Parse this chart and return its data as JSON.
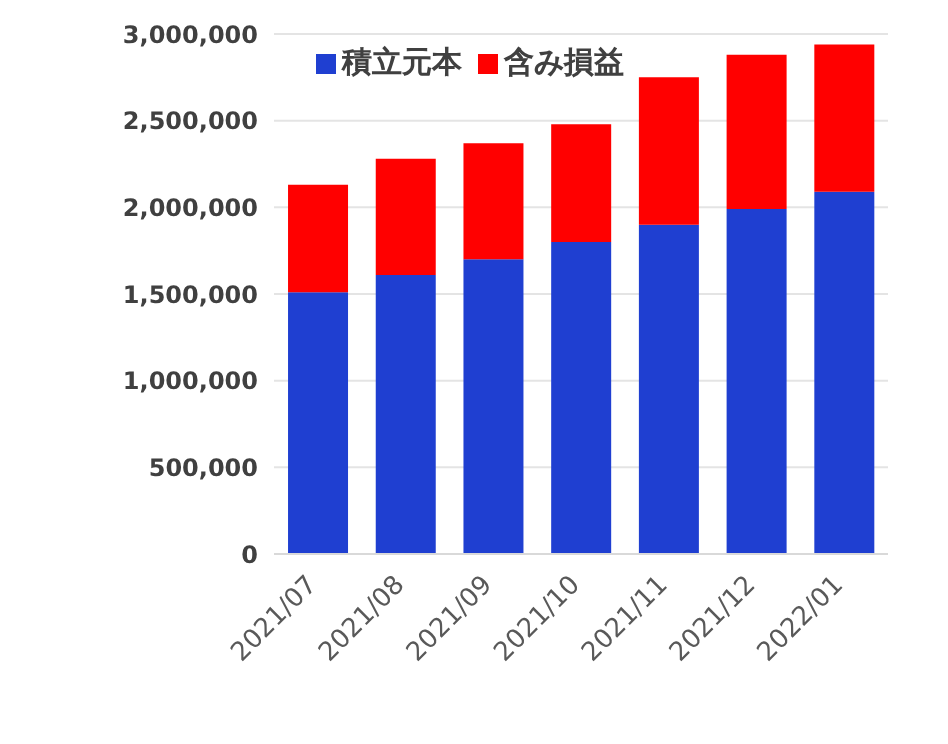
{
  "chart_data": {
    "type": "bar",
    "stacked": true,
    "categories": [
      "2021/07",
      "2021/08",
      "2021/09",
      "2021/10",
      "2021/11",
      "2021/12",
      "2022/01"
    ],
    "series": [
      {
        "name": "積立元本",
        "color": "#1f3fd1",
        "values": [
          1510000,
          1610000,
          1700000,
          1800000,
          1900000,
          1990000,
          2090000
        ]
      },
      {
        "name": "含み損益",
        "color": "#ff0000",
        "values": [
          620000,
          670000,
          670000,
          680000,
          850000,
          890000,
          850000
        ]
      }
    ],
    "ylim": [
      0,
      3000000
    ],
    "yticks": [
      0,
      {
        "value": 500000,
        "label": "500,000"
      },
      {
        "value": 1000000,
        "label": "1,000,000"
      },
      {
        "value": 1500000,
        "label": "1,500,000"
      },
      {
        "value": 2000000,
        "label": "2,000,000"
      },
      {
        "value": 2500000,
        "label": "2,500,000"
      },
      {
        "value": 3000000,
        "label": "3,000,000"
      }
    ],
    "grid": "y",
    "legend": "top left"
  }
}
